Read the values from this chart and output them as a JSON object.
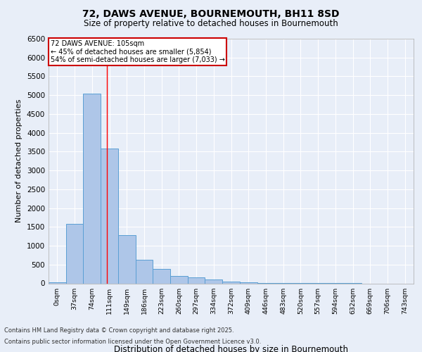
{
  "title1": "72, DAWS AVENUE, BOURNEMOUTH, BH11 8SD",
  "title2": "Size of property relative to detached houses in Bournemouth",
  "xlabel": "Distribution of detached houses by size in Bournemouth",
  "ylabel": "Number of detached properties",
  "bin_labels": [
    "0sqm",
    "37sqm",
    "74sqm",
    "111sqm",
    "149sqm",
    "186sqm",
    "223sqm",
    "260sqm",
    "297sqm",
    "334sqm",
    "372sqm",
    "409sqm",
    "446sqm",
    "483sqm",
    "520sqm",
    "557sqm",
    "594sqm",
    "632sqm",
    "669sqm",
    "706sqm",
    "743sqm"
  ],
  "bar_values": [
    30,
    1580,
    5050,
    3580,
    1280,
    620,
    390,
    200,
    155,
    100,
    45,
    20,
    10,
    5,
    3,
    2,
    1,
    1,
    0,
    0,
    0
  ],
  "bar_color": "#aec6e8",
  "bar_edge_color": "#5a9fd4",
  "red_line_x": 2.84,
  "annotation_title": "72 DAWS AVENUE: 105sqm",
  "annotation_line1": "← 45% of detached houses are smaller (5,854)",
  "annotation_line2": "54% of semi-detached houses are larger (7,033) →",
  "annotation_box_edge": "#cc0000",
  "ylim": [
    0,
    6500
  ],
  "yticks": [
    0,
    500,
    1000,
    1500,
    2000,
    2500,
    3000,
    3500,
    4000,
    4500,
    5000,
    5500,
    6000,
    6500
  ],
  "footer1": "Contains HM Land Registry data © Crown copyright and database right 2025.",
  "footer2": "Contains public sector information licensed under the Open Government Licence v3.0.",
  "background_color": "#e8eef8",
  "grid_color": "#ffffff"
}
